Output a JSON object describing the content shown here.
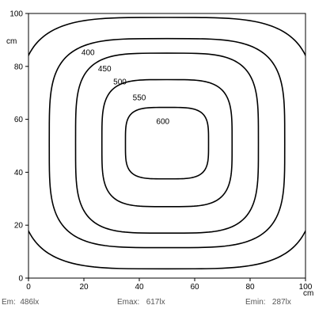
{
  "chart_data": {
    "type": "contour",
    "x_unit": "cm",
    "y_unit": "cm",
    "xlim": [
      0,
      100
    ],
    "ylim": [
      0,
      100
    ],
    "x_ticks": [
      0,
      20,
      40,
      60,
      80,
      100
    ],
    "y_ticks": [
      0,
      20,
      40,
      60,
      80,
      100
    ],
    "center": [
      50,
      51
    ],
    "contours": [
      {
        "level": 600,
        "label": "600",
        "rx": 15,
        "ry": 13.5,
        "label_at": [
          48.5,
          59
        ]
      },
      {
        "level": 550,
        "label": "550",
        "rx": 23.5,
        "ry": 24,
        "label_at": [
          40,
          68
        ]
      },
      {
        "level": 500,
        "label": "500",
        "rx": 33,
        "ry": 34,
        "label_at": [
          33,
          74
        ]
      },
      {
        "level": 450,
        "label": "450",
        "rx": 42.5,
        "ry": 39.5,
        "label_at": [
          27.5,
          79
        ]
      },
      {
        "level": 400,
        "label": "400",
        "rx": 53.5,
        "ry": 47.5,
        "label_at": [
          21.5,
          85
        ]
      }
    ]
  },
  "stats": {
    "em_label": "Em:",
    "em_value": "486lx",
    "emax_label": "Emax:",
    "emax_value": "617lx",
    "emin_label": "Emin:",
    "emin_value": "287lx"
  }
}
